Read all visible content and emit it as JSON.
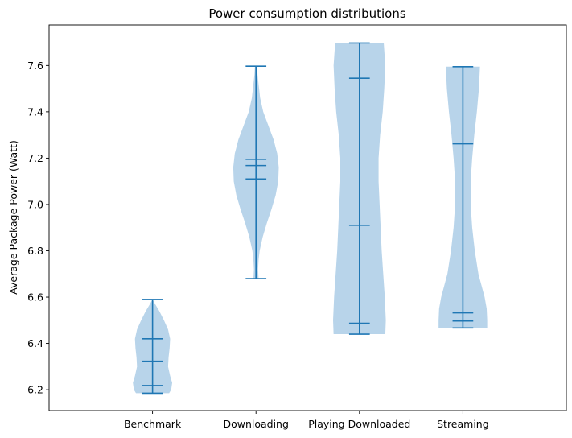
{
  "chart_data": {
    "type": "violin",
    "title": "Power consumption distributions",
    "xlabel": "",
    "ylabel": "Average Package Power (Watt)",
    "ylim": [
      6.11,
      7.775
    ],
    "yticks": [
      6.2,
      6.4,
      6.6,
      6.8,
      7.0,
      7.2,
      7.4,
      7.6
    ],
    "ytick_labels": [
      "6.2",
      "6.4",
      "6.6",
      "6.8",
      "7.0",
      "7.2",
      "7.4",
      "7.6"
    ],
    "categories": [
      "Benchmark",
      "Downloading",
      "Playing Downloaded",
      "Streaming"
    ],
    "colors": {
      "violin_fill": "#b8d4ea",
      "lines": "#1f77b4"
    },
    "series": [
      {
        "category": "Benchmark",
        "min": 6.185,
        "max": 6.59,
        "markers": [
          6.185,
          6.218,
          6.323,
          6.42,
          6.59
        ],
        "density": [
          [
            6.185,
            0.32
          ],
          [
            6.2,
            0.36
          ],
          [
            6.23,
            0.38
          ],
          [
            6.26,
            0.34
          ],
          [
            6.3,
            0.3
          ],
          [
            6.34,
            0.31
          ],
          [
            6.38,
            0.33
          ],
          [
            6.42,
            0.34
          ],
          [
            6.46,
            0.3
          ],
          [
            6.5,
            0.22
          ],
          [
            6.54,
            0.13
          ],
          [
            6.57,
            0.05
          ],
          [
            6.59,
            0.0
          ]
        ]
      },
      {
        "category": "Downloading",
        "min": 6.68,
        "max": 7.597,
        "markers": [
          6.68,
          7.11,
          7.168,
          7.195,
          7.597
        ],
        "density": [
          [
            6.68,
            0.05
          ],
          [
            6.72,
            0.04
          ],
          [
            6.76,
            0.05
          ],
          [
            6.8,
            0.07
          ],
          [
            6.86,
            0.13
          ],
          [
            6.92,
            0.21
          ],
          [
            6.98,
            0.3
          ],
          [
            7.04,
            0.38
          ],
          [
            7.1,
            0.43
          ],
          [
            7.16,
            0.44
          ],
          [
            7.22,
            0.41
          ],
          [
            7.28,
            0.34
          ],
          [
            7.34,
            0.24
          ],
          [
            7.4,
            0.14
          ],
          [
            7.46,
            0.08
          ],
          [
            7.52,
            0.05
          ],
          [
            7.56,
            0.03
          ],
          [
            7.597,
            0.02
          ]
        ]
      },
      {
        "category": "Playing Downloaded",
        "min": 6.44,
        "max": 7.697,
        "markers": [
          6.44,
          6.487,
          6.91,
          7.545,
          7.697
        ],
        "density": [
          [
            6.44,
            0.5
          ],
          [
            6.5,
            0.51
          ],
          [
            6.6,
            0.49
          ],
          [
            6.7,
            0.46
          ],
          [
            6.8,
            0.43
          ],
          [
            6.9,
            0.41
          ],
          [
            7.0,
            0.39
          ],
          [
            7.1,
            0.37
          ],
          [
            7.2,
            0.37
          ],
          [
            7.3,
            0.4
          ],
          [
            7.4,
            0.45
          ],
          [
            7.5,
            0.48
          ],
          [
            7.6,
            0.5
          ],
          [
            7.697,
            0.47
          ]
        ]
      },
      {
        "category": "Streaming",
        "min": 6.467,
        "max": 7.595,
        "markers": [
          6.467,
          6.497,
          6.532,
          7.262,
          7.595
        ],
        "density": [
          [
            6.467,
            0.47
          ],
          [
            6.5,
            0.47
          ],
          [
            6.55,
            0.46
          ],
          [
            6.6,
            0.42
          ],
          [
            6.65,
            0.36
          ],
          [
            6.7,
            0.3
          ],
          [
            6.8,
            0.23
          ],
          [
            6.9,
            0.18
          ],
          [
            7.0,
            0.15
          ],
          [
            7.1,
            0.15
          ],
          [
            7.2,
            0.18
          ],
          [
            7.3,
            0.22
          ],
          [
            7.4,
            0.27
          ],
          [
            7.5,
            0.31
          ],
          [
            7.595,
            0.33
          ]
        ]
      }
    ]
  }
}
